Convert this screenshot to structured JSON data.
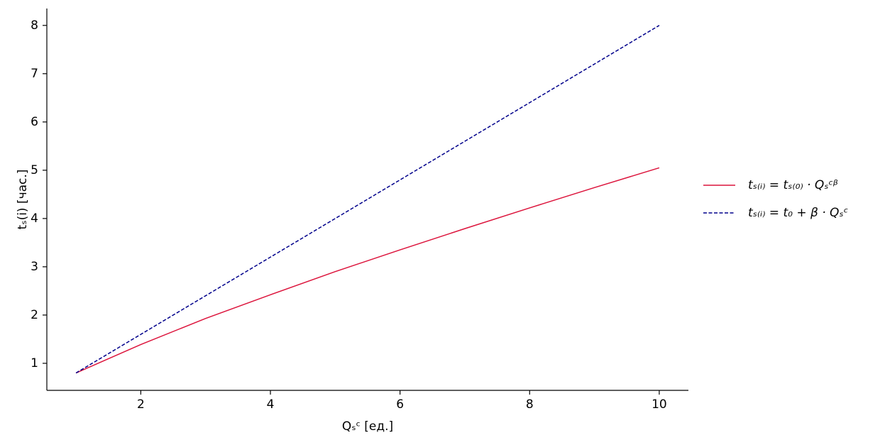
{
  "chart_data": {
    "type": "line",
    "xlabel": "Qₛᶜ [ед.]",
    "ylabel": "tₛ(i) [час.]",
    "x": [
      1,
      2,
      3,
      4,
      5,
      6,
      7,
      8,
      9,
      10
    ],
    "series": [
      {
        "name": "tₛ₍ᵢ₎ = tₛ₍₀₎ · Qₛᶜᵝ",
        "color": "#dc143c",
        "dash": "solid",
        "values": [
          0.8,
          1.39,
          1.93,
          2.42,
          2.9,
          3.35,
          3.79,
          4.22,
          4.64,
          5.05
        ]
      },
      {
        "name": "tₛ₍ᵢ₎ = t₀ + β · Qₛᶜ",
        "color": "#00008b",
        "dash": "dashed",
        "values": [
          0.8,
          1.6,
          2.4,
          3.2,
          4.0,
          4.8,
          5.6,
          6.4,
          7.2,
          8.0
        ]
      }
    ],
    "xlim": [
      0.55,
      10.45
    ],
    "ylim": [
      0.44,
      8.35
    ],
    "xticks": [
      2,
      4,
      6,
      8,
      10
    ],
    "yticks": [
      1,
      2,
      3,
      4,
      5,
      6,
      7,
      8
    ],
    "grid": false,
    "legend": "outside-right"
  }
}
